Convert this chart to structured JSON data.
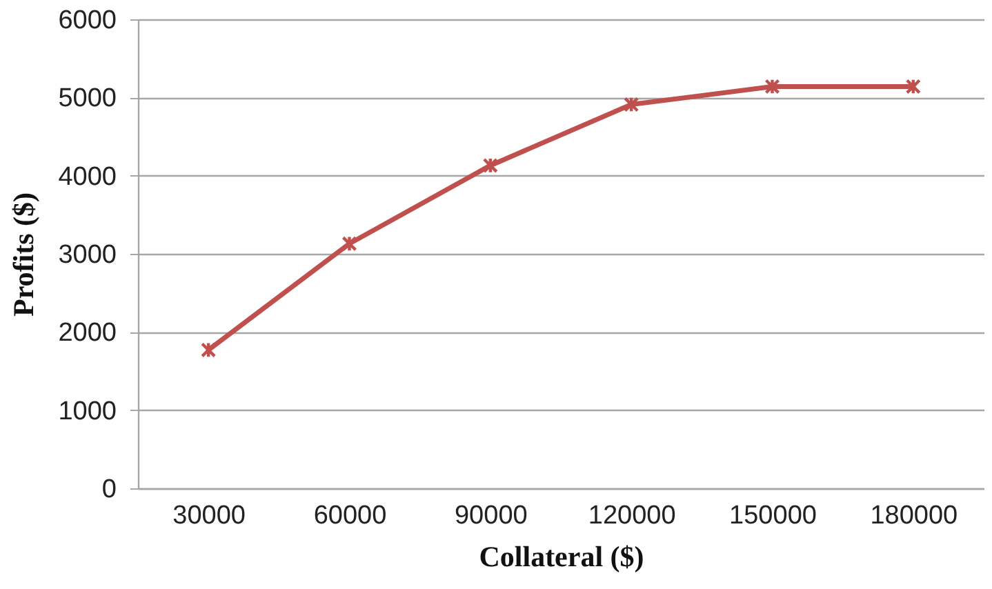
{
  "chart_data": {
    "type": "line",
    "xlabel": "Collateral ($)",
    "ylabel": "Profits ($)",
    "categories": [
      "30000",
      "60000",
      "90000",
      "120000",
      "150000",
      "180000"
    ],
    "series": [
      {
        "color": "#c0504d",
        "values": [
          1770,
          3130,
          4130,
          4910,
          5140,
          5140
        ]
      }
    ],
    "ylim": [
      0,
      6000
    ],
    "yticks": [
      0,
      1000,
      2000,
      3000,
      4000,
      5000,
      6000
    ],
    "grid": "y",
    "marker": "cross",
    "line_style": "solid"
  }
}
